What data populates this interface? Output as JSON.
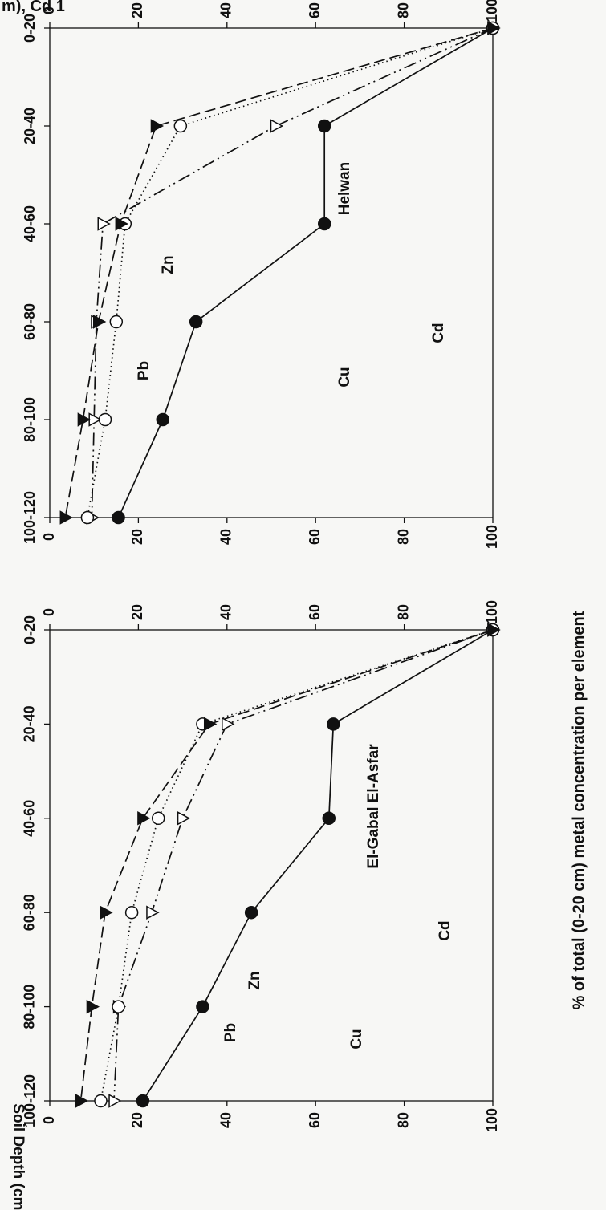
{
  "header_fragment": "m), Cd 1",
  "chart_data": [
    {
      "type": "line",
      "title": "Helwan",
      "categories": [
        "0-20",
        "20-40",
        "40-60",
        "60-80",
        "80-100",
        "100-120"
      ],
      "xlabel": "",
      "ylabel": "",
      "ylim": [
        0,
        100
      ],
      "yticks": [
        0,
        20,
        40,
        60,
        80,
        100
      ],
      "grid": false,
      "series": [
        {
          "name": "Cd",
          "marker": "filled-circle",
          "line": "solid",
          "color": "#111111",
          "values": [
            100,
            62,
            62,
            33,
            25.5,
            15.5
          ]
        },
        {
          "name": "Zn",
          "marker": "open-triangle",
          "line": "dash-dot-dot",
          "color": "#111111",
          "values": [
            100,
            51,
            12,
            10.5,
            10,
            9.5
          ]
        },
        {
          "name": "Cu",
          "marker": "open-circle",
          "line": "dotted",
          "color": "#111111",
          "values": [
            100,
            29.5,
            17,
            15,
            12.5,
            8.5
          ]
        },
        {
          "name": "Pb",
          "marker": "filled-triangle",
          "line": "dashed",
          "color": "#111111",
          "values": [
            100,
            24,
            16,
            11,
            7.5,
            3.5
          ]
        }
      ]
    },
    {
      "type": "line",
      "title": "El-Gabal El-Asfar",
      "categories": [
        "0-20",
        "20-40",
        "40-60",
        "60-80",
        "80-100",
        "100-120"
      ],
      "xlabel": "Soil Depth (cm)",
      "ylabel": "% of total (0-20 cm) metal concentration per element",
      "ylim": [
        0,
        100
      ],
      "yticks": [
        0,
        20,
        40,
        60,
        80,
        100
      ],
      "grid": false,
      "series": [
        {
          "name": "Cd",
          "marker": "filled-circle",
          "line": "solid",
          "color": "#111111",
          "values": [
            100,
            64,
            63,
            45.5,
            34.5,
            21
          ]
        },
        {
          "name": "Zn",
          "marker": "open-triangle",
          "line": "dash-dot-dot",
          "color": "#111111",
          "values": [
            100,
            40,
            30,
            23,
            15.5,
            14.5
          ]
        },
        {
          "name": "Cu",
          "marker": "open-circle",
          "line": "dotted",
          "color": "#111111",
          "values": [
            100,
            34.5,
            24.5,
            18.5,
            15.5,
            11.5
          ]
        },
        {
          "name": "Pb",
          "marker": "filled-triangle",
          "line": "dashed",
          "color": "#111111",
          "values": [
            100,
            36,
            21,
            12.5,
            9.5,
            7
          ]
        }
      ]
    }
  ]
}
